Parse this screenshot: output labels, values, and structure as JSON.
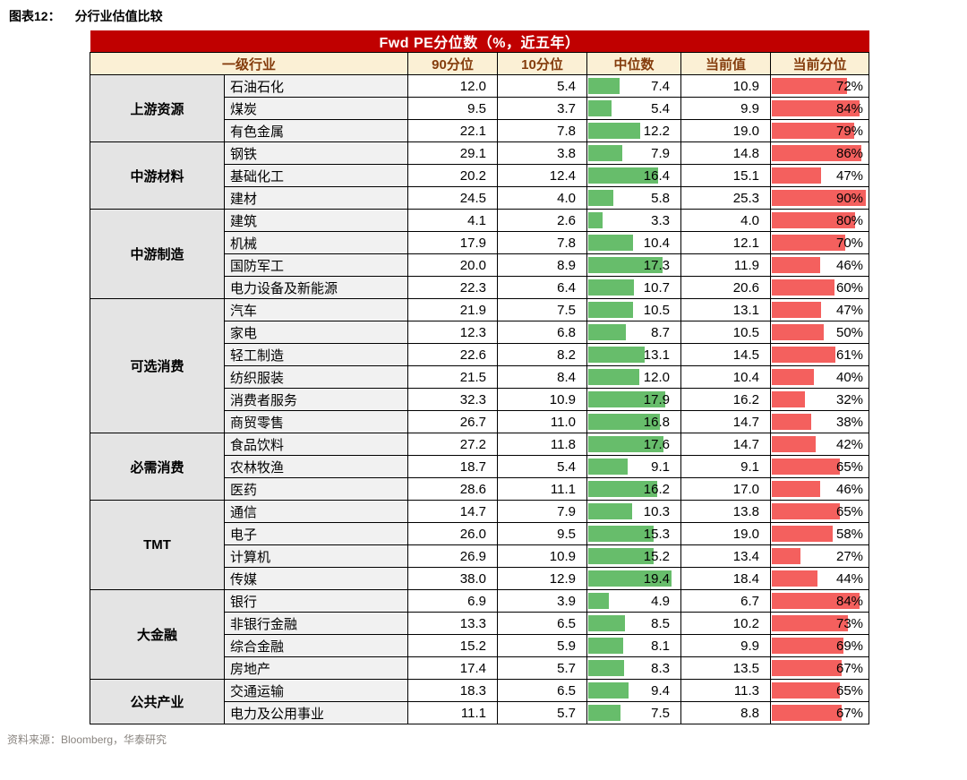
{
  "page": {
    "figure_label": "图表12：",
    "figure_title": "分行业估值比较",
    "footer": "资料来源：Bloomberg，华泰研究"
  },
  "colors": {
    "banner_bg": "#C00000",
    "banner_text": "#FFFFFF",
    "header_bg": "#FBF0D5",
    "header_text": "#843C0C",
    "green_bar": "#67BD6B",
    "red_bar": "#F4605E",
    "cat_bg": "#E4E4E4",
    "industry_bg": "#F1F1F1"
  },
  "chart_data": {
    "type": "table",
    "title": "Fwd PE分位数（%，近五年）",
    "columns": [
      "一级行业",
      "90分位",
      "10分位",
      "中位数",
      "当前值",
      "当前分位"
    ],
    "median_bar_max": 20,
    "percentile_bar_max": 100,
    "groups": [
      {
        "category": "上游资源",
        "rows": [
          [
            "石油石化",
            12.0,
            5.4,
            7.4,
            10.9,
            72
          ],
          [
            "煤炭",
            9.5,
            3.7,
            5.4,
            9.9,
            84
          ],
          [
            "有色金属",
            22.1,
            7.8,
            12.2,
            19.0,
            79
          ]
        ]
      },
      {
        "category": "中游材料",
        "rows": [
          [
            "钢铁",
            29.1,
            3.8,
            7.9,
            14.8,
            86
          ],
          [
            "基础化工",
            20.2,
            12.4,
            16.4,
            15.1,
            47
          ],
          [
            "建材",
            24.5,
            4.0,
            5.8,
            25.3,
            90
          ]
        ]
      },
      {
        "category": "中游制造",
        "rows": [
          [
            "建筑",
            4.1,
            2.6,
            3.3,
            4.0,
            80
          ],
          [
            "机械",
            17.9,
            7.8,
            10.4,
            12.1,
            70
          ],
          [
            "国防军工",
            20.0,
            8.9,
            17.3,
            11.9,
            46
          ],
          [
            "电力设备及新能源",
            22.3,
            6.4,
            10.7,
            20.6,
            60
          ]
        ]
      },
      {
        "category": "可选消费",
        "rows": [
          [
            "汽车",
            21.9,
            7.5,
            10.5,
            13.1,
            47
          ],
          [
            "家电",
            12.3,
            6.8,
            8.7,
            10.5,
            50
          ],
          [
            "轻工制造",
            22.6,
            8.2,
            13.1,
            14.5,
            61
          ],
          [
            "纺织服装",
            21.5,
            8.4,
            12.0,
            10.4,
            40
          ],
          [
            "消费者服务",
            32.3,
            10.9,
            17.9,
            16.2,
            32
          ],
          [
            "商贸零售",
            26.7,
            11.0,
            16.8,
            14.7,
            38
          ]
        ]
      },
      {
        "category": "必需消费",
        "rows": [
          [
            "食品饮料",
            27.2,
            11.8,
            17.6,
            14.7,
            42
          ],
          [
            "农林牧渔",
            18.7,
            5.4,
            9.1,
            9.1,
            65
          ],
          [
            "医药",
            28.6,
            11.1,
            16.2,
            17.0,
            46
          ]
        ]
      },
      {
        "category": "TMT",
        "rows": [
          [
            "通信",
            14.7,
            7.9,
            10.3,
            13.8,
            65
          ],
          [
            "电子",
            26.0,
            9.5,
            15.3,
            19.0,
            58
          ],
          [
            "计算机",
            26.9,
            10.9,
            15.2,
            13.4,
            27
          ],
          [
            "传媒",
            38.0,
            12.9,
            19.4,
            18.4,
            44
          ]
        ]
      },
      {
        "category": "大金融",
        "rows": [
          [
            "银行",
            6.9,
            3.9,
            4.9,
            6.7,
            84
          ],
          [
            "非银行金融",
            13.3,
            6.5,
            8.5,
            10.2,
            73
          ],
          [
            "综合金融",
            15.2,
            5.9,
            8.1,
            9.9,
            69
          ],
          [
            "房地产",
            17.4,
            5.7,
            8.3,
            13.5,
            67
          ]
        ]
      },
      {
        "category": "公共产业",
        "rows": [
          [
            "交通运输",
            18.3,
            6.5,
            9.4,
            11.3,
            65
          ],
          [
            "电力及公用事业",
            11.1,
            5.7,
            7.5,
            8.8,
            67
          ]
        ]
      }
    ]
  }
}
